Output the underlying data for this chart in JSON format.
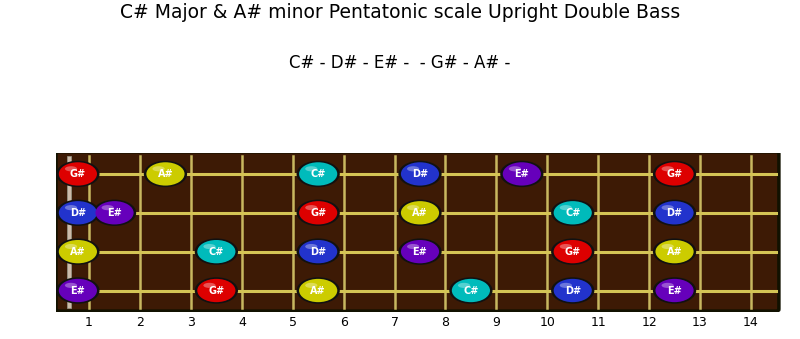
{
  "title": "C# Major & A# minor Pentatonic scale Upright Double Bass",
  "subtitle": "C# - D# - E# -  - G# - A# -",
  "board_color": "#3d1a05",
  "fret_color": "#c8b860",
  "string_color": "#d4c455",
  "nut_color": "#bbbbbb",
  "notes": [
    {
      "string": 4,
      "fret": 1,
      "note": "G#",
      "color": "#dd0000"
    },
    {
      "string": 4,
      "fret": 3,
      "note": "A#",
      "color": "#cccc00"
    },
    {
      "string": 4,
      "fret": 6,
      "note": "C#",
      "color": "#00bbbb"
    },
    {
      "string": 4,
      "fret": 8,
      "note": "D#",
      "color": "#2233cc"
    },
    {
      "string": 4,
      "fret": 10,
      "note": "E#",
      "color": "#6600bb"
    },
    {
      "string": 4,
      "fret": 13,
      "note": "G#",
      "color": "#dd0000"
    },
    {
      "string": 3,
      "fret": 1,
      "note": "D#",
      "color": "#2233cc"
    },
    {
      "string": 3,
      "fret": 2,
      "note": "E#",
      "color": "#6600bb"
    },
    {
      "string": 3,
      "fret": 6,
      "note": "G#",
      "color": "#dd0000"
    },
    {
      "string": 3,
      "fret": 8,
      "note": "A#",
      "color": "#cccc00"
    },
    {
      "string": 3,
      "fret": 11,
      "note": "C#",
      "color": "#00bbbb"
    },
    {
      "string": 3,
      "fret": 13,
      "note": "D#",
      "color": "#2233cc"
    },
    {
      "string": 2,
      "fret": 1,
      "note": "A#",
      "color": "#cccc00"
    },
    {
      "string": 2,
      "fret": 4,
      "note": "C#",
      "color": "#00bbbb"
    },
    {
      "string": 2,
      "fret": 6,
      "note": "D#",
      "color": "#2233cc"
    },
    {
      "string": 2,
      "fret": 8,
      "note": "E#",
      "color": "#6600bb"
    },
    {
      "string": 2,
      "fret": 11,
      "note": "G#",
      "color": "#dd0000"
    },
    {
      "string": 2,
      "fret": 13,
      "note": "A#",
      "color": "#cccc00"
    },
    {
      "string": 1,
      "fret": 1,
      "note": "E#",
      "color": "#6600bb"
    },
    {
      "string": 1,
      "fret": 4,
      "note": "G#",
      "color": "#dd0000"
    },
    {
      "string": 1,
      "fret": 6,
      "note": "A#",
      "color": "#cccc00"
    },
    {
      "string": 1,
      "fret": 9,
      "note": "C#",
      "color": "#00bbbb"
    },
    {
      "string": 1,
      "fret": 11,
      "note": "D#",
      "color": "#2233cc"
    },
    {
      "string": 1,
      "fret": 13,
      "note": "E#",
      "color": "#6600bb"
    }
  ],
  "figsize": [
    8.0,
    3.39
  ],
  "dpi": 100
}
